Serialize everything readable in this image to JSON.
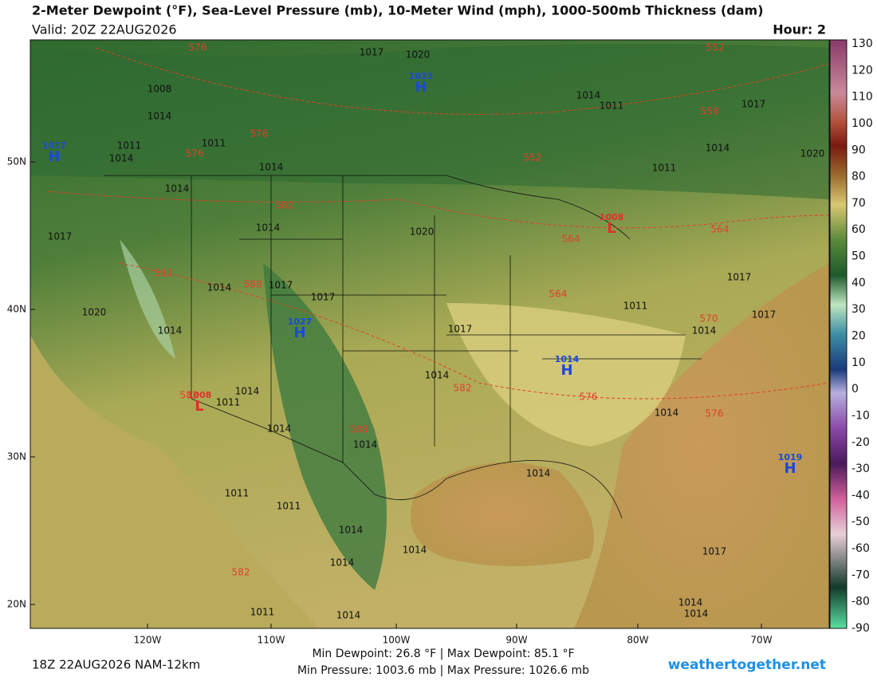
{
  "header": {
    "title": "2-Meter Dewpoint (°F), Sea-Level Pressure (mb), 10-Meter Wind (mph), 1000-500mb Thickness (dam)",
    "valid": "Valid: 20Z 22AUG2026",
    "hour": "Hour: 2"
  },
  "map": {
    "lat_labels": [
      "50N",
      "40N",
      "30N",
      "20N"
    ],
    "lon_labels": [
      "120W",
      "110W",
      "100W",
      "90W",
      "80W",
      "70W"
    ],
    "pressure_centers": [
      {
        "letter": "H",
        "value": "1023"
      },
      {
        "letter": "H",
        "value": "1017"
      },
      {
        "letter": "H",
        "value": "1027"
      },
      {
        "letter": "L",
        "value": "1008"
      },
      {
        "letter": "H",
        "value": "1014"
      },
      {
        "letter": "L",
        "value": "1008"
      },
      {
        "letter": "H",
        "value": "1019"
      }
    ],
    "isobar_labels": [
      "1008",
      "1014",
      "1011",
      "1014",
      "1011",
      "1014",
      "1014",
      "1017",
      "1014",
      "1014",
      "1017",
      "1017",
      "1020",
      "1014",
      "1014",
      "1011",
      "1014",
      "1014",
      "1014",
      "1017",
      "1020",
      "1017",
      "1020",
      "1014",
      "1011",
      "1017",
      "1020",
      "1014",
      "1011",
      "1017",
      "1011",
      "1014",
      "1017",
      "1014",
      "1014",
      "1017",
      "1014",
      "1014",
      "1011",
      "1011",
      "1014",
      "1014",
      "1014",
      "1014",
      "1011"
    ],
    "thickness_labels": [
      "576",
      "552",
      "576",
      "576",
      "552",
      "558",
      "582",
      "582",
      "588",
      "564",
      "564",
      "570",
      "582",
      "576",
      "576",
      "588",
      "582",
      "582",
      "564"
    ]
  },
  "colorbar": {
    "ticks": [
      130,
      120,
      110,
      100,
      90,
      80,
      70,
      60,
      50,
      40,
      30,
      20,
      10,
      0,
      -10,
      -20,
      -30,
      -40,
      -50,
      -60,
      -70,
      -80,
      -90
    ]
  },
  "footer": {
    "run": "18Z 22AUG2026 NAM-12km",
    "dewpoint": "Min Dewpoint:  26.8 °F | Max Dewpoint:  85.1 °F",
    "pressure": "Min Pressure: 1003.6 mb | Max Pressure: 1026.6 mb",
    "site": "weathertogether.net"
  }
}
